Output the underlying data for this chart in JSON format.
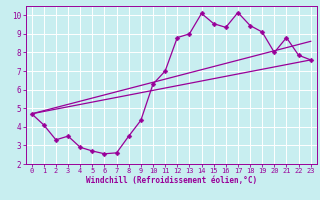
{
  "xlabel": "Windchill (Refroidissement éolien,°C)",
  "bg_color": "#c8eef0",
  "line_color": "#990099",
  "grid_color": "#ffffff",
  "xlim": [
    -0.5,
    23.5
  ],
  "ylim": [
    2,
    10.5
  ],
  "xticks": [
    0,
    1,
    2,
    3,
    4,
    5,
    6,
    7,
    8,
    9,
    10,
    11,
    12,
    13,
    14,
    15,
    16,
    17,
    18,
    19,
    20,
    21,
    22,
    23
  ],
  "yticks": [
    2,
    3,
    4,
    5,
    6,
    7,
    8,
    9,
    10
  ],
  "line1_x": [
    0,
    1,
    2,
    3,
    4,
    5,
    6,
    7,
    8,
    9,
    10,
    11,
    12,
    13,
    14,
    15,
    16,
    17,
    18,
    19,
    20,
    21,
    22,
    23
  ],
  "line1_y": [
    4.7,
    4.1,
    3.3,
    3.5,
    2.9,
    2.7,
    2.55,
    2.6,
    3.5,
    4.35,
    6.3,
    7.0,
    8.8,
    9.0,
    10.1,
    9.55,
    9.35,
    10.15,
    9.45,
    9.1,
    8.0,
    8.8,
    7.85,
    7.6
  ],
  "line2_x": [
    0,
    23
  ],
  "line2_y": [
    4.7,
    8.6
  ],
  "line3_x": [
    0,
    23
  ],
  "line3_y": [
    4.7,
    7.6
  ],
  "markersize": 2.5
}
